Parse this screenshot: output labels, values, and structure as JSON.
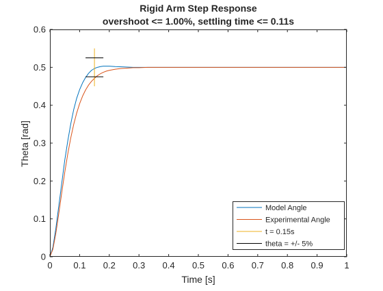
{
  "chart_data": {
    "type": "line",
    "title": "Rigid Arm Step Response",
    "subtitle": "overshoot <= 1.00%, settling time <= 0.11s",
    "xlabel": "Time [s]",
    "ylabel": "Theta [rad]",
    "xlim": [
      0,
      1
    ],
    "ylim": [
      0,
      0.6
    ],
    "xticks": [
      "0",
      "0.1",
      "0.2",
      "0.3",
      "0.4",
      "0.5",
      "0.6",
      "0.7",
      "0.8",
      "0.9",
      "1"
    ],
    "yticks": [
      "0",
      "0.1",
      "0.2",
      "0.3",
      "0.4",
      "0.5",
      "0.6"
    ],
    "grid": false,
    "legend_position": "bottom-right",
    "series": [
      {
        "name": "Model Angle",
        "color": "#0072BD",
        "x": [
          0,
          0.01,
          0.02,
          0.03,
          0.04,
          0.05,
          0.06,
          0.07,
          0.08,
          0.09,
          0.1,
          0.11,
          0.12,
          0.13,
          0.14,
          0.15,
          0.16,
          0.17,
          0.18,
          0.19,
          0.2,
          0.22,
          0.25,
          0.28,
          0.3,
          0.35,
          0.4,
          0.5,
          0.6,
          0.7,
          0.8,
          0.9,
          1.0
        ],
        "y": [
          0,
          0.025,
          0.075,
          0.135,
          0.195,
          0.255,
          0.305,
          0.35,
          0.388,
          0.418,
          0.441,
          0.459,
          0.473,
          0.484,
          0.492,
          0.497,
          0.5,
          0.502,
          0.503,
          0.503,
          0.503,
          0.502,
          0.501,
          0.5,
          0.5,
          0.5,
          0.5,
          0.5,
          0.5,
          0.5,
          0.5,
          0.5,
          0.5
        ]
      },
      {
        "name": "Experimental Angle",
        "color": "#D95319",
        "x": [
          0,
          0.01,
          0.02,
          0.03,
          0.04,
          0.05,
          0.06,
          0.07,
          0.08,
          0.09,
          0.1,
          0.11,
          0.12,
          0.13,
          0.14,
          0.15,
          0.16,
          0.17,
          0.18,
          0.19,
          0.2,
          0.22,
          0.24,
          0.26,
          0.28,
          0.3,
          0.33,
          0.36,
          0.4,
          0.5,
          0.6,
          0.8,
          1.0
        ],
        "y": [
          0,
          0.02,
          0.062,
          0.115,
          0.17,
          0.223,
          0.271,
          0.313,
          0.349,
          0.379,
          0.404,
          0.424,
          0.44,
          0.453,
          0.463,
          0.471,
          0.478,
          0.483,
          0.487,
          0.49,
          0.492,
          0.495,
          0.497,
          0.498,
          0.499,
          0.499,
          0.5,
          0.5,
          0.5,
          0.5,
          0.5,
          0.5,
          0.5
        ]
      },
      {
        "name": "t = 0.15s",
        "color": "#EDB120",
        "x": [
          0.15,
          0.15
        ],
        "y": [
          0.45,
          0.55
        ]
      },
      {
        "name": "theta = +/- 5%",
        "color": "#000000",
        "segments": [
          {
            "x": [
              0.12,
              0.18
            ],
            "y": [
              0.525,
              0.525
            ]
          },
          {
            "x": [
              0.12,
              0.18
            ],
            "y": [
              0.475,
              0.475
            ]
          }
        ]
      }
    ]
  }
}
